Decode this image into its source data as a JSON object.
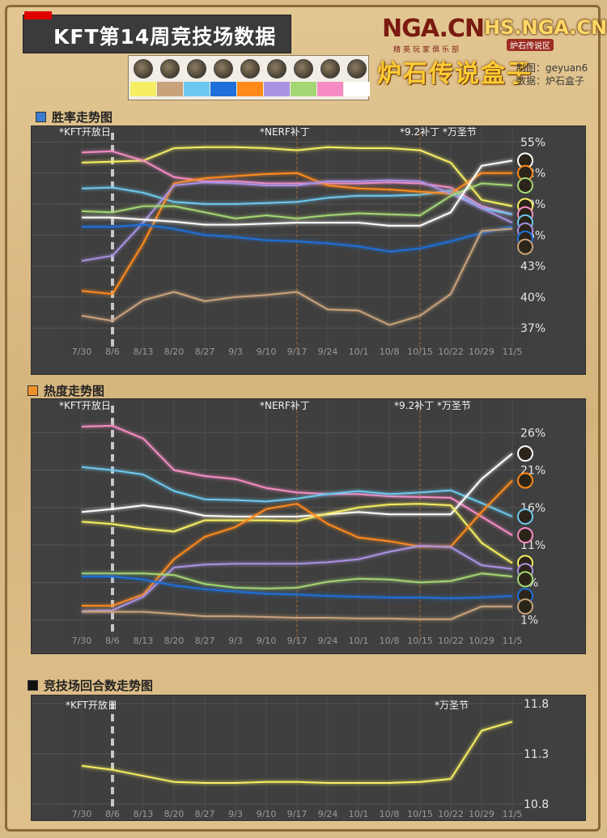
{
  "header": {
    "title": "KFT第14周竞技场数据",
    "logo_nga": "NGA.CN",
    "logo_nga_sub": "精英玩家俱乐部",
    "logo_hs": "HS.NGA.CN",
    "logo_hs_sub": "炉石传说区",
    "logo_box": "炉石传说盒子",
    "maker_line": "制图：geyuan6",
    "data_line": "数据：炉石盒子"
  },
  "legend": [
    {
      "class": "Paladin",
      "icon": "paladin-icon",
      "color": "#f5ee62"
    },
    {
      "class": "Warrior",
      "icon": "warrior-icon",
      "color": "#c8a27a"
    },
    {
      "class": "Shaman",
      "icon": "shaman-icon",
      "color": "#6cc8ee"
    },
    {
      "class": "Warlock",
      "icon": "warlock-icon",
      "color": "#1e6fd9"
    },
    {
      "class": "Mage",
      "icon": "mage-icon",
      "color": "#ff8a1a"
    },
    {
      "class": "Priest",
      "icon": "priest-icon",
      "color": "#a992e2"
    },
    {
      "class": "Rogue",
      "icon": "rogue-icon",
      "color": "#a4d673"
    },
    {
      "class": "Druid",
      "icon": "druid-icon",
      "color": "#f68cc4"
    },
    {
      "class": "Hunter",
      "icon": "hunter-icon",
      "color": "#ffffff"
    }
  ],
  "sections": {
    "winrate": "胜率走势图",
    "popularity": "热度走势图",
    "rounds": "竞技场回合数走势图"
  },
  "annotations": {
    "kft": "*KFT开放日",
    "nerf": "*NERF补丁",
    "patch_halloween_1": "*9.2补丁 *万圣节",
    "patch_halloween_2": "*9.2补丁 *万圣节",
    "halloween": "*万圣节"
  },
  "chart_data": [
    {
      "type": "line",
      "title": "胜率走势图",
      "x": [
        "7/30",
        "8/6",
        "8/13",
        "8/20",
        "8/27",
        "9/3",
        "9/10",
        "9/17",
        "9/24",
        "10/1",
        "10/8",
        "10/15",
        "10/22",
        "10/29",
        "11/5"
      ],
      "yticks": [
        "55%",
        "52%",
        "49%",
        "46%",
        "43%",
        "40%",
        "37%"
      ],
      "ylim": [
        36,
        55.5
      ],
      "series": [
        {
          "class": "Paladin",
          "color": "#f5ee62",
          "values": [
            53,
            53.1,
            53.2,
            54.4,
            54.5,
            54.5,
            54.4,
            54.2,
            54.5,
            54.4,
            54.4,
            54.2,
            53,
            49.4,
            48.8
          ]
        },
        {
          "class": "Druid",
          "color": "#f68cc4",
          "values": [
            54,
            54.1,
            53.2,
            51.6,
            51.2,
            51.2,
            51,
            51,
            51,
            51,
            51.1,
            51,
            50.6,
            48.8,
            48
          ]
        },
        {
          "class": "Shaman",
          "color": "#6cc8ee",
          "values": [
            50.5,
            50.6,
            50.1,
            49.2,
            49,
            49,
            49.1,
            49.2,
            49.6,
            49.8,
            49.8,
            49.9,
            50.3,
            48.6,
            48
          ]
        },
        {
          "class": "Mage",
          "color": "#ff8a1a",
          "values": [
            40.6,
            40.3,
            45.2,
            51,
            51.5,
            51.7,
            51.9,
            52,
            50.8,
            50.5,
            50.4,
            50.2,
            50,
            52,
            52
          ]
        },
        {
          "class": "Priest",
          "color": "#a992e2",
          "values": [
            43.5,
            44,
            47.2,
            50.8,
            51.1,
            51,
            50.8,
            50.8,
            51.2,
            51.2,
            51.3,
            51.2,
            50,
            48.6,
            47.2
          ]
        },
        {
          "class": "Rogue",
          "color": "#a4d673",
          "values": [
            48.3,
            48.2,
            48.8,
            48.8,
            48.2,
            47.6,
            47.9,
            47.6,
            47.9,
            48.1,
            48,
            47.9,
            49.8,
            51,
            50.8
          ]
        },
        {
          "class": "Hunter",
          "color": "#ffffff",
          "values": [
            47.7,
            47.7,
            47.5,
            47.3,
            47,
            47,
            47.1,
            47.2,
            47.2,
            47.2,
            46.9,
            46.9,
            48.2,
            52.7,
            53.2
          ]
        },
        {
          "class": "Warlock",
          "color": "#1e6fd9",
          "values": [
            46.8,
            46.8,
            47,
            46.6,
            46,
            45.8,
            45.5,
            45.4,
            45.2,
            44.9,
            44.4,
            44.7,
            45.4,
            46.2,
            46.8
          ]
        },
        {
          "class": "Warrior",
          "color": "#c8a27a",
          "values": [
            38.2,
            37.7,
            39.7,
            40.5,
            39.6,
            40,
            40.2,
            40.5,
            38.8,
            38.7,
            37.3,
            38.2,
            40.3,
            46.4,
            46.6
          ]
        }
      ]
    },
    {
      "type": "line",
      "title": "热度走势图",
      "x": [
        "7/30",
        "8/6",
        "8/13",
        "8/20",
        "8/27",
        "9/3",
        "9/10",
        "9/17",
        "9/24",
        "10/1",
        "10/8",
        "10/15",
        "10/22",
        "10/29",
        "11/5"
      ],
      "yticks": [
        "26%",
        "21%",
        "16%",
        "11%",
        "6%",
        "1%"
      ],
      "ylim": [
        0,
        27
      ],
      "series": [
        {
          "class": "Druid",
          "color": "#f68cc4",
          "values": [
            26.8,
            26.9,
            25.2,
            21,
            20.2,
            19.8,
            18.6,
            18,
            17.8,
            17.8,
            17.5,
            17.4,
            17.3,
            14.8,
            12.3
          ]
        },
        {
          "class": "Shaman",
          "color": "#6cc8ee",
          "values": [
            21.4,
            21,
            20.4,
            18.2,
            17.1,
            17,
            16.8,
            17.2,
            17.8,
            18.2,
            17.8,
            18,
            18.3,
            16.6,
            14.8
          ]
        },
        {
          "class": "Hunter",
          "color": "#ffffff",
          "values": [
            15.4,
            15.8,
            16.3,
            15.8,
            14.9,
            14.8,
            14.8,
            14.8,
            15.1,
            15.4,
            15.1,
            15.1,
            15.1,
            19.8,
            23.2
          ]
        },
        {
          "class": "Paladin",
          "color": "#f5ee62",
          "values": [
            14.1,
            13.8,
            13.2,
            12.8,
            14.3,
            14.3,
            14.3,
            14.2,
            15.2,
            16,
            16.4,
            16.5,
            16.3,
            11.3,
            8.6
          ]
        },
        {
          "class": "Mage",
          "color": "#ff8a1a",
          "values": [
            2.9,
            2.9,
            4.4,
            9.1,
            12.1,
            13.4,
            15.8,
            16.5,
            13.8,
            12,
            11.5,
            10.8,
            10.8,
            15.4,
            19.6
          ]
        },
        {
          "class": "Priest",
          "color": "#a992e2",
          "values": [
            2.2,
            2.3,
            4.1,
            8,
            8.4,
            8.5,
            8.5,
            8.5,
            8.7,
            9.1,
            10.1,
            10.9,
            10.7,
            8.3,
            7.8
          ]
        },
        {
          "class": "Rogue",
          "color": "#a4d673",
          "values": [
            7.2,
            7.2,
            7.2,
            7,
            5.8,
            5.3,
            5.2,
            5.3,
            6.1,
            6.5,
            6.4,
            6,
            6.2,
            7.2,
            6.8
          ]
        },
        {
          "class": "Warlock",
          "color": "#1e6fd9",
          "values": [
            6.8,
            6.8,
            6.4,
            5.6,
            5.1,
            4.8,
            4.5,
            4.4,
            4.2,
            4.1,
            4,
            4,
            3.9,
            4,
            4.2
          ]
        },
        {
          "class": "Warrior",
          "color": "#c8a27a",
          "values": [
            2.1,
            2.1,
            2.1,
            1.8,
            1.5,
            1.5,
            1.4,
            1.3,
            1.3,
            1.2,
            1.2,
            1.1,
            1.1,
            2.8,
            2.8
          ]
        }
      ]
    },
    {
      "type": "line",
      "title": "竞技场回合数走势图",
      "x": [
        "7/30",
        "8/6",
        "8/13",
        "8/20",
        "8/27",
        "9/3",
        "9/10",
        "9/17",
        "9/24",
        "10/1",
        "10/8",
        "10/15",
        "10/22",
        "10/29",
        "11/5"
      ],
      "yticks": [
        "11.8",
        "11.3",
        "10.8"
      ],
      "ylim": [
        10.8,
        11.8
      ],
      "series": [
        {
          "name": "回合数",
          "color": "#f5ee62",
          "values": [
            11.18,
            11.14,
            11.08,
            11.02,
            11.01,
            11.01,
            11.02,
            11.02,
            11.01,
            11.01,
            11.01,
            11.02,
            11.05,
            11.53,
            11.62
          ]
        }
      ]
    }
  ]
}
